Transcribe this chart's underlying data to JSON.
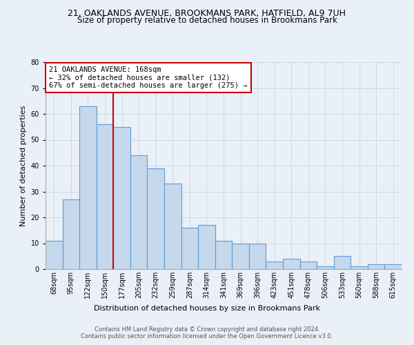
{
  "title1": "21, OAKLANDS AVENUE, BROOKMANS PARK, HATFIELD, AL9 7UH",
  "title2": "Size of property relative to detached houses in Brookmans Park",
  "xlabel": "Distribution of detached houses by size in Brookmans Park",
  "ylabel": "Number of detached properties",
  "footer1": "Contains HM Land Registry data © Crown copyright and database right 2024.",
  "footer2": "Contains public sector information licensed under the Open Government Licence v3.0.",
  "annotation_title": "21 OAKLANDS AVENUE: 168sqm",
  "annotation_line2": "← 32% of detached houses are smaller (132)",
  "annotation_line3": "67% of semi-detached houses are larger (275) →",
  "bar_values": [
    11,
    27,
    63,
    56,
    55,
    44,
    39,
    33,
    16,
    17,
    11,
    10,
    10,
    3,
    4,
    3,
    1,
    5,
    1,
    2,
    2
  ],
  "bar_labels": [
    "68sqm",
    "95sqm",
    "122sqm",
    "150sqm",
    "177sqm",
    "205sqm",
    "232sqm",
    "259sqm",
    "287sqm",
    "314sqm",
    "341sqm",
    "369sqm",
    "396sqm",
    "423sqm",
    "451sqm",
    "478sqm",
    "506sqm",
    "533sqm",
    "560sqm",
    "588sqm",
    "615sqm"
  ],
  "bar_color": "#c5d8ec",
  "bar_edge_color": "#5b9bd5",
  "grid_color": "#d0d8e4",
  "background_color": "#eaf0f8",
  "redline_index": 3.5,
  "ylim": [
    0,
    80
  ],
  "yticks": [
    0,
    10,
    20,
    30,
    40,
    50,
    60,
    70,
    80
  ],
  "redline_color": "#cc0000",
  "annotation_box_color": "#ffffff",
  "annotation_box_edge": "#cc0000",
  "title1_fontsize": 9,
  "title2_fontsize": 8.5,
  "axis_label_fontsize": 8,
  "tick_fontsize": 7,
  "footer_fontsize": 6,
  "annotation_fontsize": 7.5
}
